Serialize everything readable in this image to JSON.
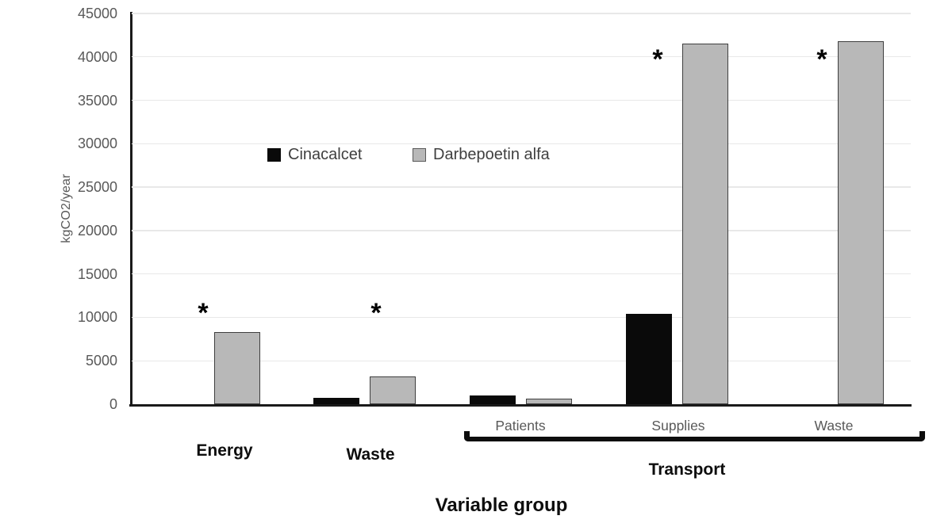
{
  "chart_data": {
    "type": "bar",
    "title": "",
    "ylabel": "kgCO2/year",
    "xlabel": "Variable group",
    "ylim": [
      0,
      45000
    ],
    "ytick_interval": 5000,
    "yticks": [
      0,
      5000,
      10000,
      15000,
      20000,
      25000,
      30000,
      35000,
      40000,
      45000
    ],
    "grid": true,
    "legend_position": "inside-upper-left-of-center",
    "categories": [
      "Energy",
      "Waste",
      "Patients",
      "Supplies",
      "Waste"
    ],
    "category_groups": {
      "standalone": [
        "Energy",
        "Waste"
      ],
      "bracketed": {
        "label": "Transport",
        "members": [
          "Patients",
          "Supplies",
          "Waste"
        ]
      }
    },
    "series": [
      {
        "name": "Cinacalcet",
        "color": "#0a0a0a",
        "values": [
          0,
          750,
          1000,
          10400,
          0
        ]
      },
      {
        "name": "Darbepoetin alfa",
        "color": "#b8b8b8",
        "values": [
          8300,
          3200,
          650,
          41500,
          41800
        ]
      }
    ],
    "annotations": {
      "symbol": "*",
      "significant_categories": [
        "Energy",
        "Waste",
        "Supplies",
        "Waste (Transport)"
      ]
    }
  },
  "labels": {
    "group_energy": "Energy",
    "group_waste": "Waste",
    "sub_patients": "Patients",
    "sub_supplies": "Supplies",
    "sub_waste": "Waste",
    "bracket_group": "Transport"
  },
  "colors": {
    "bar_black": "#0a0a0a",
    "bar_gray_fill": "#b8b8b8",
    "bar_gray_border": "#3f3f3f",
    "axis_line": "#1a1a1a",
    "gridline": "#e8e8e8",
    "tick_text": "#595959",
    "legend_text": "#3f3f3f",
    "label_text": "#0d0d0d"
  }
}
